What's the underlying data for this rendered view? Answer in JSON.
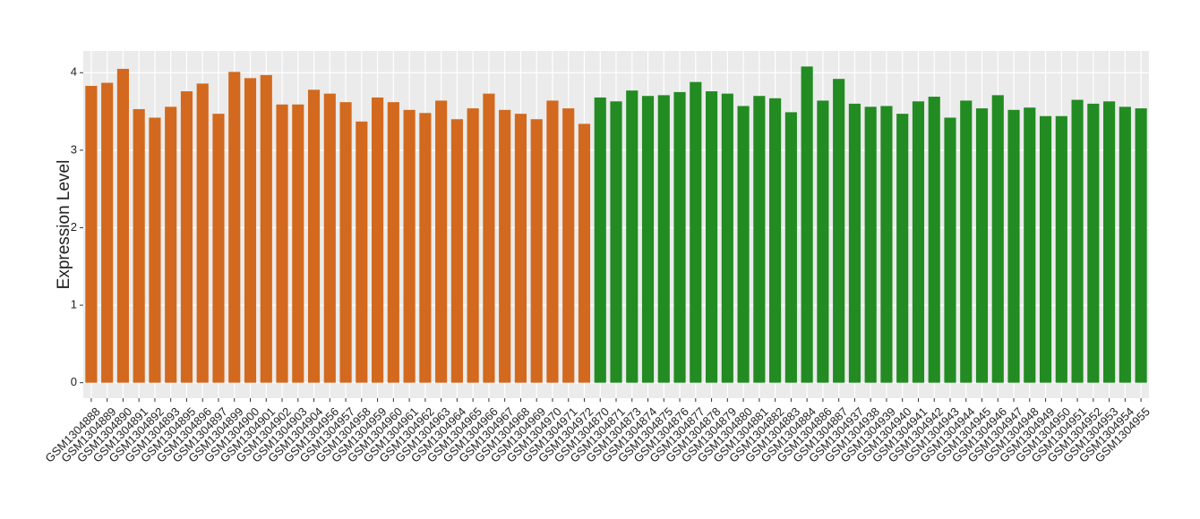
{
  "chart_data": {
    "type": "bar",
    "y_label": "Expression Level",
    "categories": [
      "GSM1304888",
      "GSM1304889",
      "GSM1304890",
      "GSM1304891",
      "GSM1304892",
      "GSM1304893",
      "GSM1304895",
      "GSM1304896",
      "GSM1304897",
      "GSM1304899",
      "GSM1304900",
      "GSM1304901",
      "GSM1304902",
      "GSM1304903",
      "GSM1304904",
      "GSM1304956",
      "GSM1304957",
      "GSM1304958",
      "GSM1304959",
      "GSM1304960",
      "GSM1304961",
      "GSM1304962",
      "GSM1304963",
      "GSM1304964",
      "GSM1304965",
      "GSM1304966",
      "GSM1304967",
      "GSM1304968",
      "GSM1304969",
      "GSM1304970",
      "GSM1304971",
      "GSM1304972",
      "GSM1304870",
      "GSM1304871",
      "GSM1304873",
      "GSM1304874",
      "GSM1304875",
      "GSM1304876",
      "GSM1304877",
      "GSM1304878",
      "GSM1304879",
      "GSM1304880",
      "GSM1304881",
      "GSM1304882",
      "GSM1304883",
      "GSM1304884",
      "GSM1304886",
      "GSM1304887",
      "GSM1304937",
      "GSM1304938",
      "GSM1304939",
      "GSM1304940",
      "GSM1304941",
      "GSM1304942",
      "GSM1304943",
      "GSM1304944",
      "GSM1304945",
      "GSM1304946",
      "GSM1304947",
      "GSM1304948",
      "GSM1304949",
      "GSM1304950",
      "GSM1304951",
      "GSM1304952",
      "GSM1304953",
      "GSM1304954",
      "GSM1304955"
    ],
    "values": [
      3.83,
      3.87,
      4.05,
      3.53,
      3.42,
      3.56,
      3.76,
      3.86,
      3.47,
      4.01,
      3.93,
      3.97,
      3.59,
      3.59,
      3.78,
      3.73,
      3.62,
      3.37,
      3.68,
      3.62,
      3.52,
      3.48,
      3.64,
      3.4,
      3.54,
      3.73,
      3.52,
      3.47,
      3.4,
      3.64,
      3.54,
      3.34,
      3.68,
      3.63,
      3.77,
      3.7,
      3.71,
      3.75,
      3.88,
      3.76,
      3.73,
      3.57,
      3.7,
      3.67,
      3.49,
      4.08,
      3.64,
      3.92,
      3.6,
      3.56,
      3.57,
      3.47,
      3.63,
      3.69,
      3.42,
      3.64,
      3.54,
      3.71,
      3.52,
      3.55,
      3.44,
      3.44,
      3.65,
      3.6,
      3.63,
      3.56,
      3.54
    ],
    "colors": [
      "#d2691e",
      "#d2691e",
      "#d2691e",
      "#d2691e",
      "#d2691e",
      "#d2691e",
      "#d2691e",
      "#d2691e",
      "#d2691e",
      "#d2691e",
      "#d2691e",
      "#d2691e",
      "#d2691e",
      "#d2691e",
      "#d2691e",
      "#d2691e",
      "#d2691e",
      "#d2691e",
      "#d2691e",
      "#d2691e",
      "#d2691e",
      "#d2691e",
      "#d2691e",
      "#d2691e",
      "#d2691e",
      "#d2691e",
      "#d2691e",
      "#d2691e",
      "#d2691e",
      "#d2691e",
      "#d2691e",
      "#d2691e",
      "#228b22",
      "#228b22",
      "#228b22",
      "#228b22",
      "#228b22",
      "#228b22",
      "#228b22",
      "#228b22",
      "#228b22",
      "#228b22",
      "#228b22",
      "#228b22",
      "#228b22",
      "#228b22",
      "#228b22",
      "#228b22",
      "#228b22",
      "#228b22",
      "#228b22",
      "#228b22",
      "#228b22",
      "#228b22",
      "#228b22",
      "#228b22",
      "#228b22",
      "#228b22",
      "#228b22",
      "#228b22",
      "#228b22",
      "#228b22",
      "#228b22",
      "#228b22",
      "#228b22",
      "#228b22",
      "#228b22"
    ],
    "ylim": [
      -0.2,
      4.28
    ],
    "yticks": [
      0,
      1,
      2,
      3,
      4
    ],
    "grid": true
  }
}
